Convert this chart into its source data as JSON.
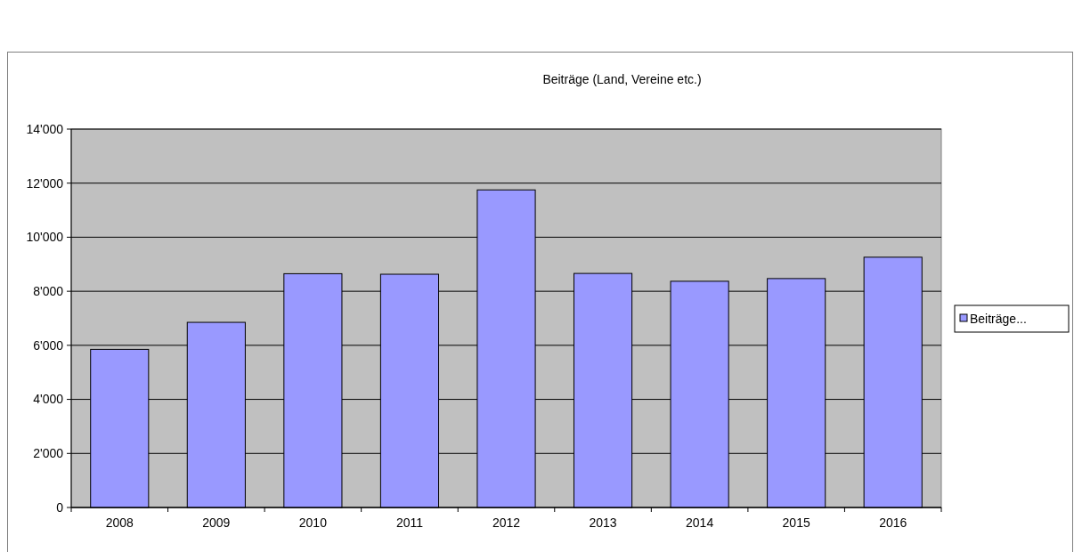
{
  "chart_data": {
    "type": "bar",
    "title": "Beiträge (Land, Vereine etc.)",
    "categories": [
      "2008",
      "2009",
      "2010",
      "2011",
      "2012",
      "2013",
      "2014",
      "2015",
      "2016"
    ],
    "series": [
      {
        "name": "Beiträge...",
        "color": "#9999ff",
        "values": [
          5850,
          6850,
          8650,
          8630,
          11750,
          8660,
          8370,
          8470,
          9260
        ]
      }
    ],
    "ylim": [
      0,
      14000
    ],
    "yticks": [
      0,
      {
        "value": 2000,
        "label": "2'000"
      },
      {
        "value": 4000,
        "label": "4'000"
      },
      {
        "value": 6000,
        "label": "6'000"
      },
      {
        "value": 8000,
        "label": "8'000"
      },
      {
        "value": 10000,
        "label": "10'000"
      },
      {
        "value": 12000,
        "label": "12'000"
      },
      {
        "value": 14000,
        "label": "14'000"
      }
    ],
    "grid": "y",
    "legend": "right"
  }
}
